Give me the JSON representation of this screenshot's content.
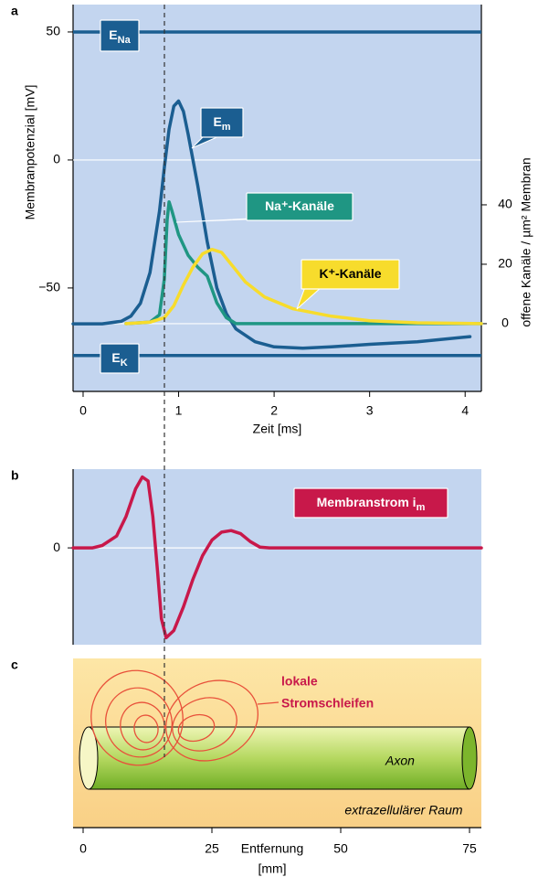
{
  "chart_data": [
    {
      "type": "line",
      "label": "a",
      "xlabel": "Zeit [ms]",
      "ylabel": "Membranpotenzial [mV]",
      "y2label": "offene Kanäle / µm² Membran",
      "xlim": [
        -0.105,
        4.17
      ],
      "xticks": [
        0,
        1,
        2,
        3,
        4
      ],
      "ylim": [
        -90.4,
        60.7
      ],
      "yticks": [
        50,
        0,
        {
          "value": -50,
          "label": "−50"
        }
      ],
      "y2lim": [
        -22.8,
        107.4
      ],
      "y2ticks": [
        0,
        20,
        40
      ],
      "zero_line": true,
      "background": "#c3d5ef",
      "ref_lines": [
        {
          "name": {
            "text": "E",
            "sub": "Na"
          },
          "value": 50,
          "color": "#1b5e91"
        },
        {
          "name": {
            "text": "E",
            "sub": "K"
          },
          "value": -76.4,
          "color": "#1b5e91"
        }
      ],
      "series": [
        {
          "name": {
            "text": "E",
            "sub": "m"
          },
          "color": "#1b5e91",
          "x": [
            -0.105,
            0.2,
            0.4,
            0.5,
            0.6,
            0.7,
            0.8,
            0.85,
            0.9,
            0.95,
            1.0,
            1.05,
            1.1,
            1.2,
            1.3,
            1.4,
            1.5,
            1.6,
            1.8,
            2.0,
            2.3,
            2.6,
            3.0,
            3.5,
            4.05
          ],
          "values": [
            -64,
            -64,
            -63,
            -61,
            -56,
            -44,
            -20,
            -3,
            12,
            21,
            23,
            19,
            10,
            -10,
            -32,
            -50,
            -60,
            -66,
            -71,
            -73,
            -73.5,
            -73,
            -72,
            -71,
            -69
          ]
        },
        {
          "name": {
            "text": "Na⁺-Kanäle"
          },
          "color": "#1f9683",
          "axis": "y2",
          "x": [
            0.45,
            0.7,
            0.8,
            0.85,
            0.88,
            0.9,
            0.93,
            1.0,
            1.1,
            1.2,
            1.3,
            1.4,
            1.5,
            1.6,
            4.17
          ],
          "values": [
            0,
            0.5,
            3,
            15,
            35,
            41,
            38,
            30,
            23,
            19,
            16,
            7,
            2,
            0,
            0
          ]
        },
        {
          "name": {
            "text": "K⁺-Kanäle"
          },
          "color": "#f7dc2c",
          "axis": "y2",
          "x": [
            0.45,
            0.7,
            0.85,
            0.95,
            1.05,
            1.15,
            1.25,
            1.35,
            1.45,
            1.55,
            1.7,
            1.9,
            2.2,
            2.6,
            3.0,
            3.5,
            4.17
          ],
          "values": [
            0,
            0.5,
            2,
            6,
            13,
            19,
            23.5,
            25,
            24,
            20,
            14,
            9,
            5,
            2.5,
            1,
            0.3,
            0
          ]
        }
      ]
    },
    {
      "type": "line",
      "label": "b",
      "xlim": [
        -0.105,
        4.17
      ],
      "ylim": [
        -1.23,
        1
      ],
      "yticks": [
        0
      ],
      "zero_line": true,
      "background": "#c3d5ef",
      "series": [
        {
          "name": {
            "text": "Membranstrom i",
            "sub": "m"
          },
          "color": "#c8184a",
          "x": [
            -0.105,
            0.1,
            0.2,
            0.35,
            0.45,
            0.55,
            0.62,
            0.68,
            0.73,
            0.78,
            0.82,
            0.87,
            0.95,
            1.05,
            1.15,
            1.25,
            1.35,
            1.45,
            1.55,
            1.65,
            1.75,
            1.85,
            1.95,
            4.17
          ],
          "values": [
            0,
            0,
            0.03,
            0.15,
            0.4,
            0.75,
            0.9,
            0.85,
            0.4,
            -0.3,
            -0.9,
            -1.14,
            -1.05,
            -0.75,
            -0.4,
            -0.1,
            0.1,
            0.2,
            0.22,
            0.18,
            0.08,
            0.01,
            0,
            0
          ]
        }
      ]
    },
    {
      "type": "axon",
      "label": "c",
      "xlabel": [
        "Entfernung",
        "[mm]"
      ],
      "xlim": [
        -1.95,
        77.3
      ],
      "xticks": [
        0,
        25,
        50,
        75
      ],
      "annotation": [
        "lokale",
        "Stromschleifen"
      ],
      "axon_label": "Axon",
      "space_label": "extrazellulärer Raum"
    }
  ]
}
